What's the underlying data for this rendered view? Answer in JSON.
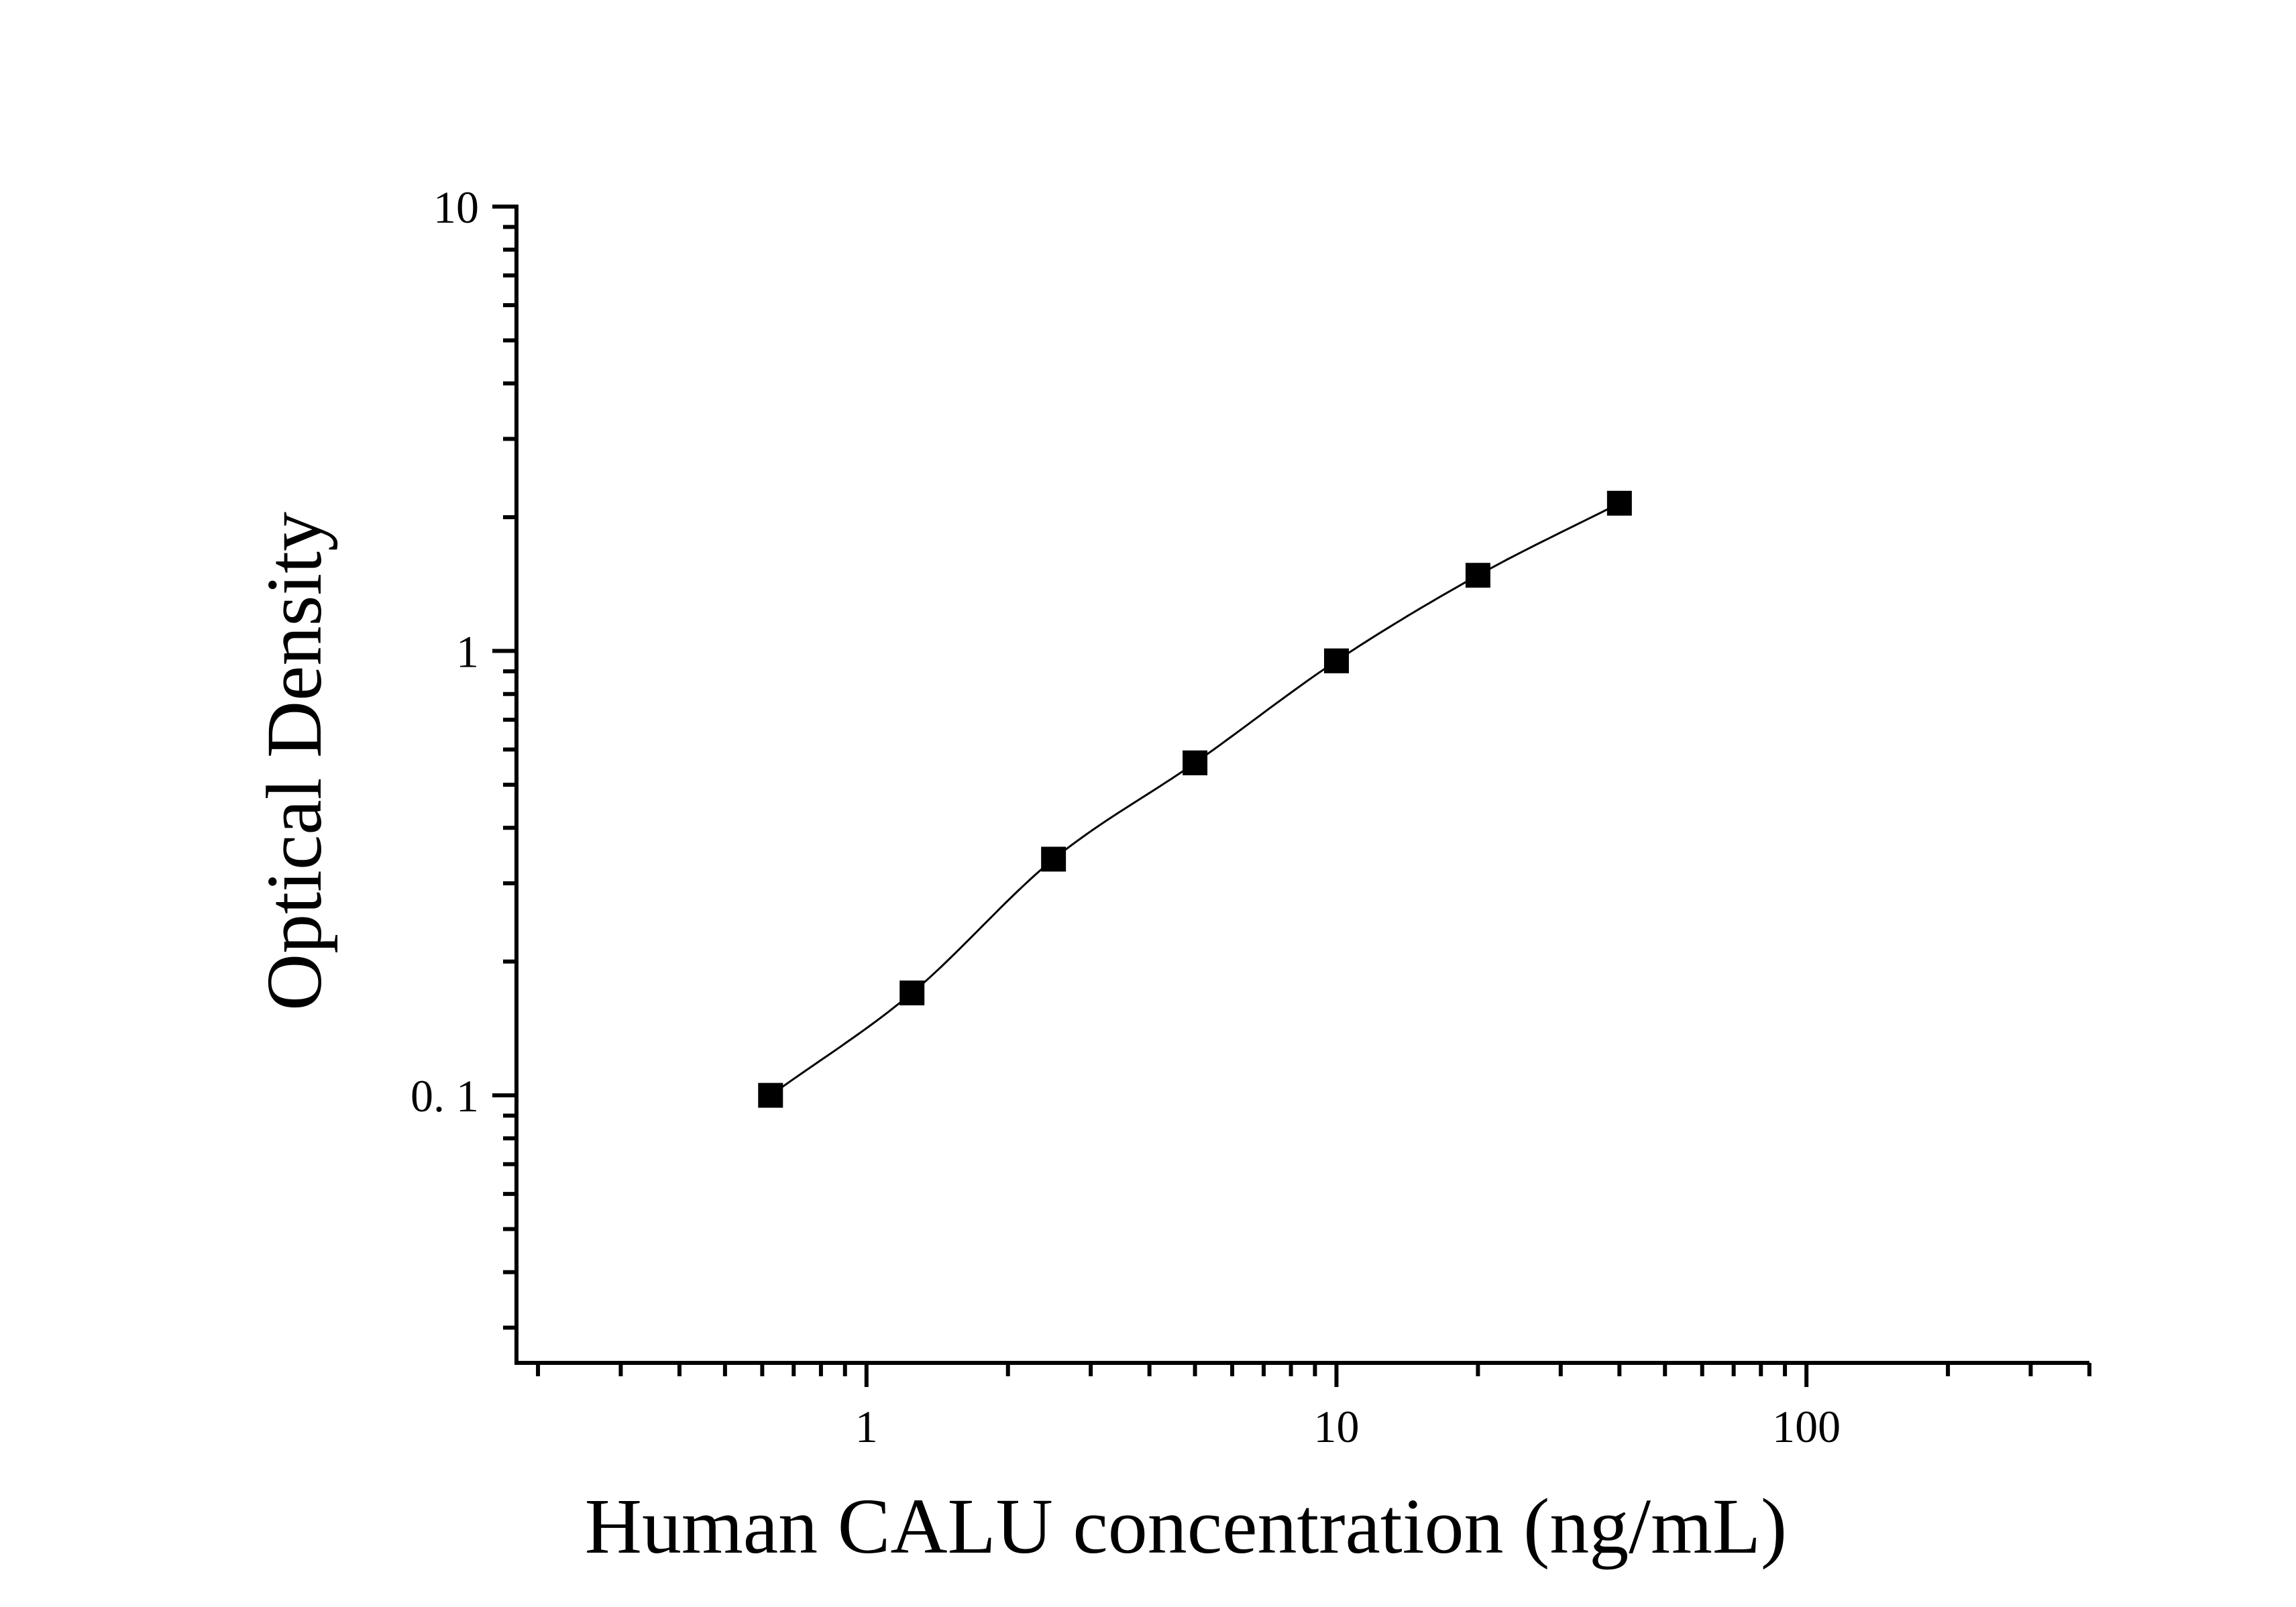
{
  "chart_data": {
    "type": "scatter",
    "title": "",
    "xlabel": "Human CALU concentration (ng/mL)",
    "ylabel": "Optical Density",
    "xscale": "log",
    "yscale": "log",
    "xlim": [
      0.18,
      400
    ],
    "ylim": [
      0.025,
      10
    ],
    "x_tick_labels": [
      "1",
      "10",
      "100"
    ],
    "x_tick_values": [
      1,
      10,
      100
    ],
    "y_tick_labels": [
      "10",
      "1",
      "0. 1"
    ],
    "y_tick_values": [
      10,
      1,
      0.1
    ],
    "grid": false,
    "legend": "none",
    "marker": "square",
    "color": "#000000",
    "series": [
      {
        "x": [
          0.625,
          1.25,
          2.5,
          5,
          10,
          20,
          40
        ],
        "y": [
          0.1,
          0.17,
          0.34,
          0.56,
          0.95,
          1.48,
          2.15
        ],
        "fit_curve": true
      }
    ]
  }
}
